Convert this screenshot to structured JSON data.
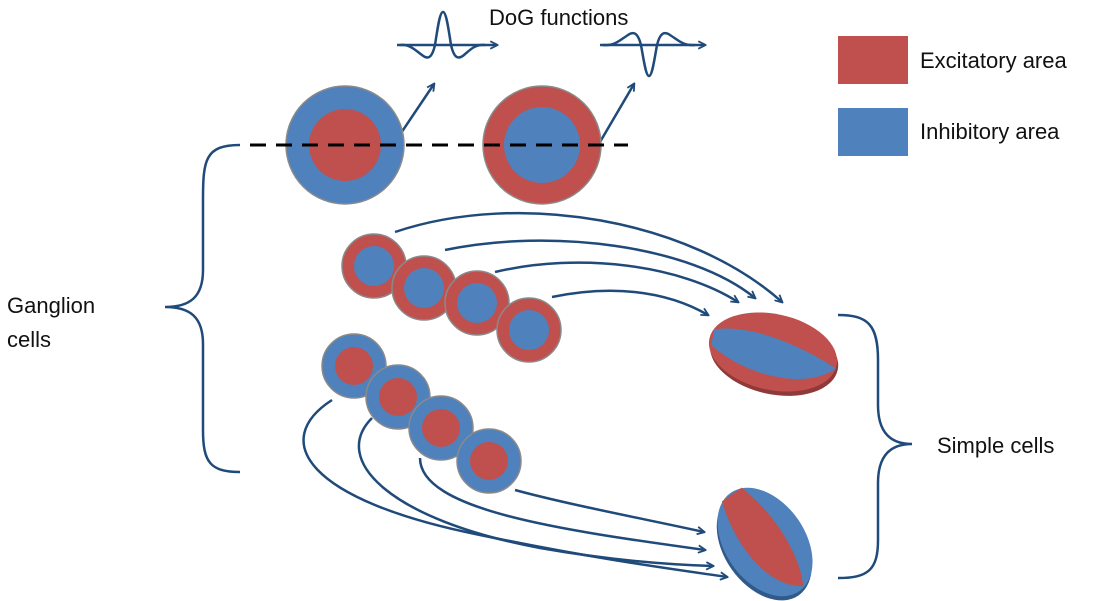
{
  "title": "DoG functions",
  "legend": {
    "excitatory": {
      "label": "Excitatory area",
      "color": "#c0504d"
    },
    "inhibitory": {
      "label": "Inhibitory area",
      "color": "#4f81bd"
    }
  },
  "labels": {
    "ganglion_line1": "Ganglion",
    "ganglion_line2": "cells",
    "simple": "Simple cells"
  },
  "colors": {
    "arrow": "#1f4a7a",
    "cell_border": "#8a8a8a",
    "dashed": "#000000"
  }
}
